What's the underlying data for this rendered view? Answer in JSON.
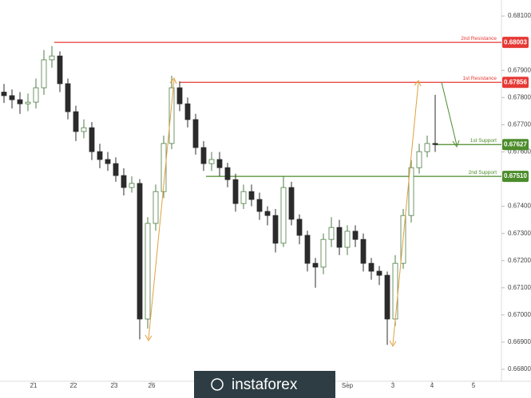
{
  "chart_data": {
    "type": "candlestick",
    "x": [
      0,
      1,
      2,
      3,
      4,
      5,
      6,
      7,
      8,
      9,
      10,
      11,
      12,
      13,
      14,
      15,
      16,
      17,
      18,
      19,
      20,
      21,
      22,
      23,
      24,
      25,
      26,
      27,
      28,
      29,
      30,
      31,
      32,
      33,
      34,
      35,
      36,
      37,
      38,
      39,
      40,
      41,
      42,
      43,
      44,
      45,
      46,
      47,
      48,
      49,
      50,
      51,
      52,
      53,
      54
    ],
    "open": [
      0.6782,
      0.67807,
      0.67792,
      0.67777,
      0.67783,
      0.67836,
      0.67939,
      0.67953,
      0.67851,
      0.67748,
      0.67675,
      0.67689,
      0.67601,
      0.67572,
      0.67557,
      0.67513,
      0.67469,
      0.67484,
      0.66985,
      0.67337,
      0.67454,
      0.67631,
      0.67836,
      0.67777,
      0.67719,
      0.67616,
      0.67557,
      0.67572,
      0.67542,
      0.67498,
      0.6741,
      0.67454,
      0.67425,
      0.67381,
      0.67366,
      0.67264,
      0.67469,
      0.67352,
      0.67293,
      0.6719,
      0.67176,
      0.67278,
      0.67322,
      0.67249,
      0.67308,
      0.67278,
      0.6719,
      0.67161,
      0.67146,
      0.66985,
      0.6719,
      0.67366,
      0.67542,
      0.67601,
      0.67631
    ],
    "high": [
      0.6785,
      0.6783,
      0.6782,
      0.67815,
      0.6787,
      0.67975,
      0.6799,
      0.6797,
      0.6787,
      0.6777,
      0.6772,
      0.6771,
      0.6763,
      0.676,
      0.6758,
      0.6754,
      0.6751,
      0.675,
      0.6736,
      0.6748,
      0.6766,
      0.6788,
      0.6786,
      0.678,
      0.6774,
      0.6764,
      0.676,
      0.676,
      0.6756,
      0.6752,
      0.6748,
      0.6748,
      0.6745,
      0.674,
      0.6739,
      0.6751,
      0.6749,
      0.6737,
      0.6731,
      0.6721,
      0.673,
      0.6736,
      0.6735,
      0.6733,
      0.6733,
      0.673,
      0.6721,
      0.6718,
      0.6716,
      0.6722,
      0.6739,
      0.6757,
      0.6763,
      0.6766,
      0.6781
    ],
    "low": [
      0.6778,
      0.6776,
      0.6774,
      0.6775,
      0.6776,
      0.6781,
      0.6791,
      0.6782,
      0.6772,
      0.6764,
      0.6765,
      0.6757,
      0.6754,
      0.6753,
      0.6749,
      0.6744,
      0.6745,
      0.6691,
      0.6695,
      0.6731,
      0.6743,
      0.6761,
      0.6775,
      0.6769,
      0.6759,
      0.6753,
      0.6753,
      0.6751,
      0.6747,
      0.6738,
      0.6739,
      0.674,
      0.6735,
      0.6733,
      0.6723,
      0.6725,
      0.6733,
      0.6726,
      0.6716,
      0.671,
      0.6715,
      0.6725,
      0.6722,
      0.6722,
      0.6725,
      0.6716,
      0.6713,
      0.6711,
      0.6689,
      0.6696,
      0.6717,
      0.6734,
      0.6752,
      0.6758,
      0.676
    ],
    "close": [
      0.67807,
      0.67792,
      0.67777,
      0.67783,
      0.67836,
      0.67939,
      0.67953,
      0.67851,
      0.67748,
      0.67675,
      0.67689,
      0.67601,
      0.67572,
      0.67557,
      0.67513,
      0.67469,
      0.67484,
      0.66985,
      0.67337,
      0.67454,
      0.67631,
      0.67836,
      0.67777,
      0.67719,
      0.67616,
      0.67557,
      0.67572,
      0.67542,
      0.67498,
      0.6741,
      0.67454,
      0.67425,
      0.67381,
      0.67366,
      0.67264,
      0.67469,
      0.67352,
      0.67293,
      0.6719,
      0.67176,
      0.67278,
      0.67322,
      0.67249,
      0.67308,
      0.67278,
      0.6719,
      0.67161,
      0.67146,
      0.66985,
      0.6719,
      0.67366,
      0.67542,
      0.67601,
      0.67631,
      0.67627
    ],
    "up_color": "#4e7d45",
    "down_color": "#2b2b2b",
    "xlim": [
      -0.5,
      62.3
    ],
    "xticks": [
      {
        "value": 3.7,
        "label": "21"
      },
      {
        "value": 8.7,
        "label": "22"
      },
      {
        "value": 13.8,
        "label": "23"
      },
      {
        "value": 18.5,
        "label": "26"
      },
      {
        "value": 43,
        "label": "Sep"
      },
      {
        "value": 48.7,
        "label": "3"
      },
      {
        "value": 53.6,
        "label": "4"
      },
      {
        "value": 58.8,
        "label": "5"
      }
    ],
    "ylim": [
      0.66756,
      0.68159
    ],
    "yticks": [
      {
        "value": 0.681,
        "label": "0.68100"
      },
      {
        "value": 0.679,
        "label": "0.67900"
      },
      {
        "value": 0.678,
        "label": "0.67800"
      },
      {
        "value": 0.677,
        "label": "0.67700"
      },
      {
        "value": 0.676,
        "label": "0.67600"
      },
      {
        "value": 0.674,
        "label": "0.67400"
      },
      {
        "value": 0.673,
        "label": "0.67300"
      },
      {
        "value": 0.672,
        "label": "0.67200"
      },
      {
        "value": 0.671,
        "label": "0.67100"
      },
      {
        "value": 0.67,
        "label": "0.67000"
      },
      {
        "value": 0.669,
        "label": "0.66900"
      },
      {
        "value": 0.668,
        "label": "0.66800"
      }
    ],
    "levels": [
      {
        "name": "2nd Resistance",
        "value": 0.68003,
        "label": "0.68003",
        "color": "#e53935"
      },
      {
        "name": "1st Resistance",
        "value": 0.67856,
        "label": "0.67856",
        "color": "#e53935"
      },
      {
        "name": "1st Support",
        "value": 0.67627,
        "label": "0.67627",
        "color": "#4c8c2b"
      },
      {
        "name": "2nd Support",
        "value": 0.6751,
        "label": "0.67510",
        "color": "#4c8c2b"
      }
    ],
    "watermark": "instaforex"
  }
}
